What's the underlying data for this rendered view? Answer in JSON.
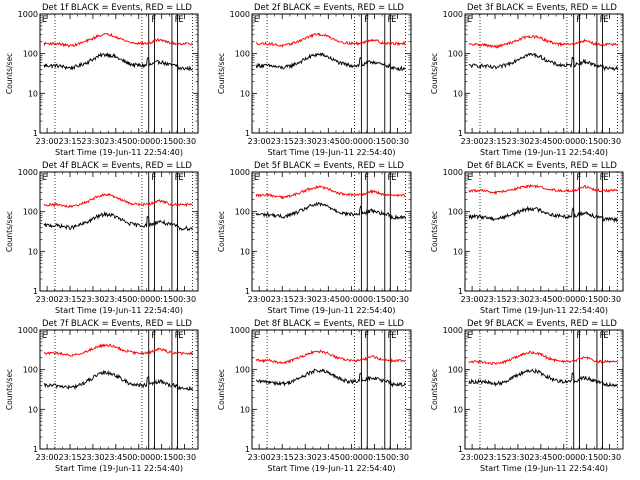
{
  "colors": {
    "background": "#ffffff",
    "axes": "#000000",
    "events_series": "#000000",
    "lld_series": "#ff0000"
  },
  "chart_data": [
    {
      "type": "line",
      "title": "Det 1f BLACK = Events, RED = LLD",
      "ylabel": "Counts/sec",
      "xlabel": "Start Time (19-Jun-11 22:54:40)",
      "yscale": "log",
      "ylim": [
        1,
        1000
      ],
      "yticks": [
        "1",
        "10",
        "100",
        "1000"
      ],
      "xticks": [
        "23:00",
        "23:15",
        "23:30",
        "23:45",
        "00:00",
        "00:15",
        "00:30"
      ],
      "markers": [
        "E",
        "F",
        "F",
        "E"
      ],
      "series": [
        {
          "name": "Events",
          "color": "#000000",
          "level": 50,
          "hump": 1.9
        },
        {
          "name": "LLD",
          "color": "#ff0000",
          "level": 180,
          "hump": 1.7
        }
      ]
    },
    {
      "type": "line",
      "title": "Det 2f BLACK = Events, RED = LLD",
      "ylabel": "Counts/sec",
      "xlabel": "Start Time (19-Jun-11 22:54:40)",
      "yscale": "log",
      "ylim": [
        1,
        1000
      ],
      "yticks": [
        "1",
        "10",
        "100",
        "1000"
      ],
      "xticks": [
        "23:00",
        "23:15",
        "23:30",
        "23:45",
        "00:00",
        "00:15",
        "00:30"
      ],
      "markers": [
        "E",
        "F",
        "F",
        "E"
      ],
      "series": [
        {
          "name": "Events",
          "color": "#000000",
          "level": 50,
          "hump": 1.9
        },
        {
          "name": "LLD",
          "color": "#ff0000",
          "level": 180,
          "hump": 1.7
        }
      ]
    },
    {
      "type": "line",
      "title": "Det 3f BLACK = Events, RED = LLD",
      "ylabel": "Counts/sec",
      "xlabel": "Start Time (19-Jun-11 22:54:40)",
      "yscale": "log",
      "ylim": [
        1,
        1000
      ],
      "yticks": [
        "1",
        "10",
        "100",
        "1000"
      ],
      "xticks": [
        "23:00",
        "23:15",
        "23:30",
        "23:45",
        "00:00",
        "00:15",
        "00:30"
      ],
      "markers": [
        "E",
        "F",
        "F",
        "E"
      ],
      "series": [
        {
          "name": "Events",
          "color": "#000000",
          "level": 50,
          "hump": 1.9
        },
        {
          "name": "LLD",
          "color": "#ff0000",
          "level": 170,
          "hump": 1.6
        }
      ]
    },
    {
      "type": "line",
      "title": "Det 4f BLACK = Events, RED = LLD",
      "ylabel": "Counts/sec",
      "xlabel": "Start Time (19-Jun-11 22:54:40)",
      "yscale": "log",
      "ylim": [
        1,
        1000
      ],
      "yticks": [
        "1",
        "10",
        "100",
        "1000"
      ],
      "xticks": [
        "23:00",
        "23:15",
        "23:30",
        "23:45",
        "00:00",
        "00:15",
        "00:30"
      ],
      "markers": [
        "E",
        "F",
        "F",
        "E"
      ],
      "series": [
        {
          "name": "Events",
          "color": "#000000",
          "level": 45,
          "hump": 1.9
        },
        {
          "name": "LLD",
          "color": "#ff0000",
          "level": 150,
          "hump": 1.8
        }
      ]
    },
    {
      "type": "line",
      "title": "Det 5f BLACK = Events, RED = LLD",
      "ylabel": "Counts/sec",
      "xlabel": "Start Time (19-Jun-11 22:54:40)",
      "yscale": "log",
      "ylim": [
        1,
        1000
      ],
      "yticks": [
        "1",
        "10",
        "100",
        "1000"
      ],
      "xticks": [
        "23:00",
        "23:15",
        "23:30",
        "23:45",
        "00:00",
        "00:15",
        "00:30"
      ],
      "markers": [
        "E",
        "F",
        "F",
        "E"
      ],
      "series": [
        {
          "name": "Events",
          "color": "#000000",
          "level": 85,
          "hump": 1.8
        },
        {
          "name": "LLD",
          "color": "#ff0000",
          "level": 260,
          "hump": 1.6
        }
      ]
    },
    {
      "type": "line",
      "title": "Det 6f BLACK = Events, RED = LLD",
      "ylabel": "Counts/sec",
      "xlabel": "Start Time (19-Jun-11 22:54:40)",
      "yscale": "log",
      "ylim": [
        1,
        1000
      ],
      "yticks": [
        "1",
        "10",
        "100",
        "1000"
      ],
      "xticks": [
        "23:00",
        "23:15",
        "23:30",
        "23:45",
        "00:00",
        "00:15",
        "00:30"
      ],
      "markers": [
        "E",
        "F",
        "F",
        "E"
      ],
      "series": [
        {
          "name": "Events",
          "color": "#000000",
          "level": 75,
          "hump": 1.6
        },
        {
          "name": "LLD",
          "color": "#ff0000",
          "level": 340,
          "hump": 1.3
        }
      ]
    },
    {
      "type": "line",
      "title": "Det 7f BLACK = Events, RED = LLD",
      "ylabel": "Counts/sec",
      "xlabel": "Start Time (19-Jun-11 22:54:40)",
      "yscale": "log",
      "ylim": [
        1,
        1000
      ],
      "yticks": [
        "1",
        "10",
        "100",
        "1000"
      ],
      "xticks": [
        "23:00",
        "23:15",
        "23:30",
        "23:45",
        "00:00",
        "00:15",
        "00:30"
      ],
      "markers": [
        "E",
        "F",
        "F",
        "E"
      ],
      "series": [
        {
          "name": "Events",
          "color": "#000000",
          "level": 40,
          "hump": 2.1
        },
        {
          "name": "LLD",
          "color": "#ff0000",
          "level": 260,
          "hump": 1.6
        }
      ]
    },
    {
      "type": "line",
      "title": "Det 8f BLACK = Events, RED = LLD",
      "ylabel": "Counts/sec",
      "xlabel": "Start Time (19-Jun-11 22:54:40)",
      "yscale": "log",
      "ylim": [
        1,
        1000
      ],
      "yticks": [
        "1",
        "10",
        "100",
        "1000"
      ],
      "xticks": [
        "23:00",
        "23:15",
        "23:30",
        "23:45",
        "00:00",
        "00:15",
        "00:30"
      ],
      "markers": [
        "E",
        "F",
        "F",
        "E"
      ],
      "series": [
        {
          "name": "Events",
          "color": "#000000",
          "level": 50,
          "hump": 1.9
        },
        {
          "name": "LLD",
          "color": "#ff0000",
          "level": 170,
          "hump": 1.7
        }
      ]
    },
    {
      "type": "line",
      "title": "Det 9f BLACK = Events, RED = LLD",
      "ylabel": "Counts/sec",
      "xlabel": "Start Time (19-Jun-11 22:54:40)",
      "yscale": "log",
      "ylim": [
        1,
        1000
      ],
      "yticks": [
        "1",
        "10",
        "100",
        "1000"
      ],
      "xticks": [
        "23:00",
        "23:15",
        "23:30",
        "23:45",
        "00:00",
        "00:15",
        "00:30"
      ],
      "markers": [
        "E",
        "F",
        "F",
        "E"
      ],
      "series": [
        {
          "name": "Events",
          "color": "#000000",
          "level": 50,
          "hump": 1.9
        },
        {
          "name": "LLD",
          "color": "#ff0000",
          "level": 160,
          "hump": 1.7
        }
      ]
    }
  ]
}
